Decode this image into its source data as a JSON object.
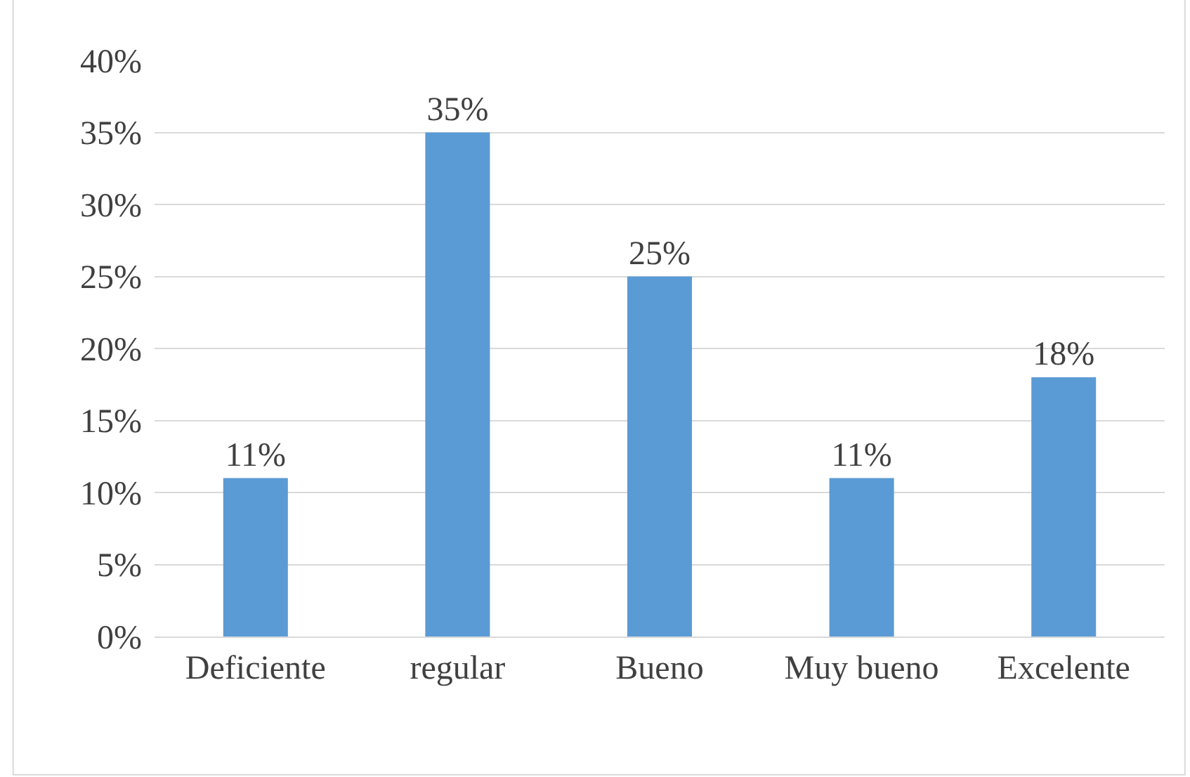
{
  "chart_data": {
    "type": "bar",
    "categories": [
      "Deficiente",
      "regular",
      "Bueno",
      "Muy bueno",
      "Excelente"
    ],
    "values": [
      11,
      35,
      25,
      11,
      18
    ],
    "value_labels": [
      "11%",
      "35%",
      "25%",
      "11%",
      "18%"
    ],
    "color": "#5b9bd5",
    "ylim": [
      0,
      40
    ],
    "yticks": [
      {
        "value": 0,
        "label": "0%"
      },
      {
        "value": 5,
        "label": "5%"
      },
      {
        "value": 10,
        "label": "10%"
      },
      {
        "value": 15,
        "label": "15%"
      },
      {
        "value": 20,
        "label": "20%"
      },
      {
        "value": 25,
        "label": "25%"
      },
      {
        "value": 30,
        "label": "30%"
      },
      {
        "value": 35,
        "label": "35%"
      },
      {
        "value": 40,
        "label": "40%"
      }
    ],
    "grid": "y",
    "legend": false
  }
}
